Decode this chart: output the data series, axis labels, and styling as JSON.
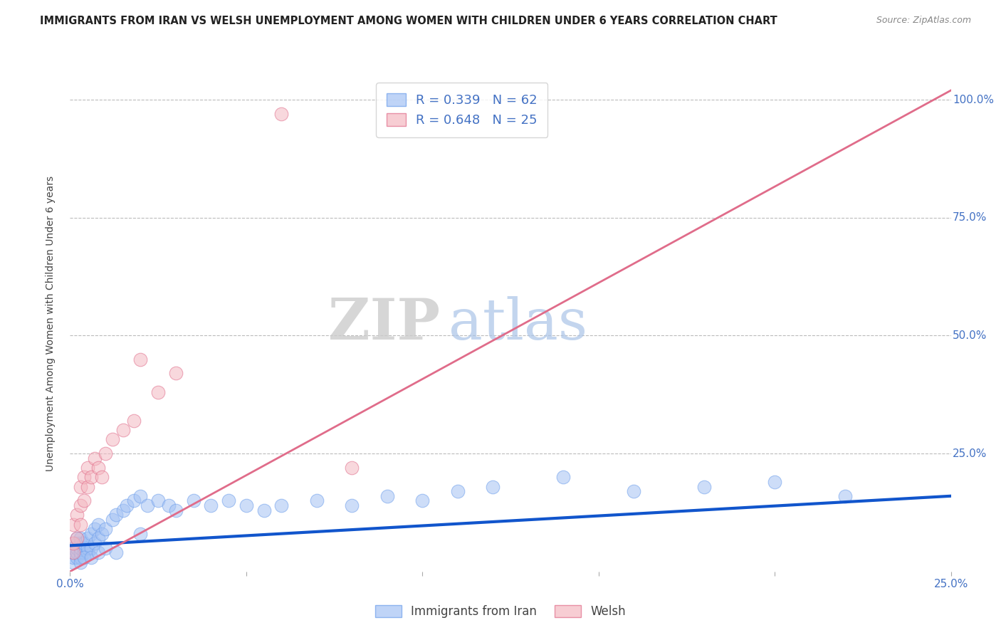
{
  "title": "IMMIGRANTS FROM IRAN VS WELSH UNEMPLOYMENT AMONG WOMEN WITH CHILDREN UNDER 6 YEARS CORRELATION CHART",
  "source": "Source: ZipAtlas.com",
  "ylabel": "Unemployment Among Women with Children Under 6 years",
  "xlim": [
    0.0,
    0.25
  ],
  "ylim": [
    0.0,
    1.05
  ],
  "yticks": [
    0.0,
    0.25,
    0.5,
    0.75,
    1.0
  ],
  "ytick_labels": [
    "",
    "25.0%",
    "50.0%",
    "75.0%",
    "100.0%"
  ],
  "xticks": [
    0.0,
    0.05,
    0.1,
    0.15,
    0.2,
    0.25
  ],
  "xtick_labels": [
    "0.0%",
    "",
    "",
    "",
    "",
    "25.0%"
  ],
  "legend_r1": "R = 0.339   N = 62",
  "legend_r2": "R = 0.648   N = 25",
  "blue_color": "#a4c2f4",
  "pink_color": "#f4b8c1",
  "blue_edge_color": "#6d9eeb",
  "pink_edge_color": "#e06c8a",
  "blue_line_color": "#1155cc",
  "pink_line_color": "#e06c8a",
  "blue_scatter_x": [
    0.001,
    0.001,
    0.001,
    0.001,
    0.002,
    0.002,
    0.002,
    0.002,
    0.002,
    0.003,
    0.003,
    0.003,
    0.003,
    0.003,
    0.004,
    0.004,
    0.004,
    0.005,
    0.005,
    0.005,
    0.006,
    0.006,
    0.007,
    0.007,
    0.008,
    0.008,
    0.009,
    0.01,
    0.012,
    0.013,
    0.015,
    0.016,
    0.018,
    0.02,
    0.022,
    0.025,
    0.028,
    0.03,
    0.035,
    0.04,
    0.045,
    0.05,
    0.055,
    0.06,
    0.07,
    0.08,
    0.09,
    0.1,
    0.11,
    0.12,
    0.14,
    0.16,
    0.18,
    0.2,
    0.22,
    0.003,
    0.004,
    0.006,
    0.008,
    0.01,
    0.013,
    0.02
  ],
  "blue_scatter_y": [
    0.02,
    0.03,
    0.04,
    0.05,
    0.03,
    0.04,
    0.05,
    0.06,
    0.07,
    0.03,
    0.04,
    0.05,
    0.06,
    0.07,
    0.04,
    0.05,
    0.06,
    0.04,
    0.05,
    0.07,
    0.05,
    0.08,
    0.06,
    0.09,
    0.07,
    0.1,
    0.08,
    0.09,
    0.11,
    0.12,
    0.13,
    0.14,
    0.15,
    0.16,
    0.14,
    0.15,
    0.14,
    0.13,
    0.15,
    0.14,
    0.15,
    0.14,
    0.13,
    0.14,
    0.15,
    0.14,
    0.16,
    0.15,
    0.17,
    0.18,
    0.2,
    0.17,
    0.18,
    0.19,
    0.16,
    0.02,
    0.03,
    0.03,
    0.04,
    0.05,
    0.04,
    0.08
  ],
  "pink_scatter_x": [
    0.001,
    0.001,
    0.001,
    0.002,
    0.002,
    0.003,
    0.003,
    0.003,
    0.004,
    0.004,
    0.005,
    0.005,
    0.006,
    0.007,
    0.008,
    0.009,
    0.01,
    0.012,
    0.015,
    0.018,
    0.02,
    0.025,
    0.03,
    0.06,
    0.08
  ],
  "pink_scatter_y": [
    0.04,
    0.06,
    0.1,
    0.07,
    0.12,
    0.1,
    0.14,
    0.18,
    0.15,
    0.2,
    0.18,
    0.22,
    0.2,
    0.24,
    0.22,
    0.2,
    0.25,
    0.28,
    0.3,
    0.32,
    0.45,
    0.38,
    0.42,
    0.97,
    0.22
  ],
  "blue_trend_x": [
    0.0,
    0.25
  ],
  "blue_trend_y": [
    0.055,
    0.16
  ],
  "pink_trend_x": [
    0.0,
    0.25
  ],
  "pink_trend_y": [
    0.0,
    1.02
  ],
  "watermark_zip": "ZIP",
  "watermark_atlas": "atlas",
  "background_color": "#ffffff",
  "grid_color": "#bbbbbb",
  "title_color": "#222222",
  "axis_label_color": "#444444",
  "tick_color": "#4472c4",
  "bottom_legend_blue": "Immigrants from Iran",
  "bottom_legend_pink": "Welsh"
}
